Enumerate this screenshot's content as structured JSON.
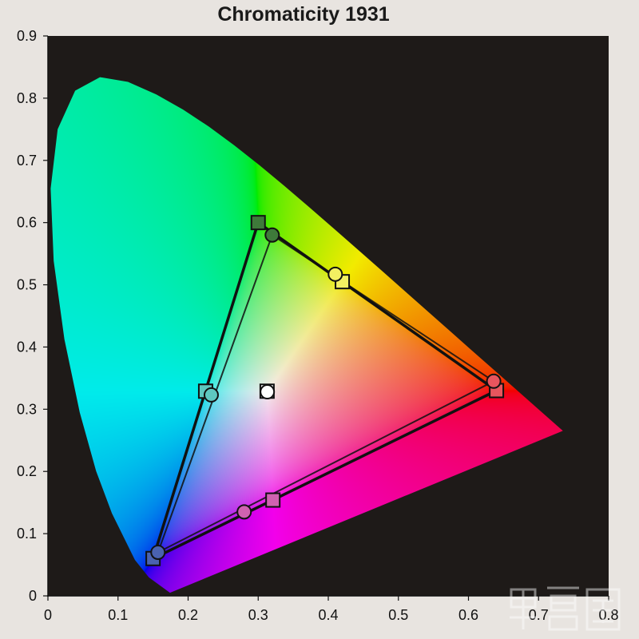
{
  "chart_data": {
    "type": "scatter",
    "title": "Chromaticity 1931",
    "xlabel": "",
    "ylabel": "",
    "xlim": [
      0,
      0.8
    ],
    "ylim": [
      0,
      0.9
    ],
    "x_ticks": [
      "0",
      "0.1",
      "0.2",
      "0.3",
      "0.4",
      "0.5",
      "0.6",
      "0.7",
      "0.8"
    ],
    "y_ticks": [
      "0",
      "0.1",
      "0.2",
      "0.3",
      "0.4",
      "0.5",
      "0.6",
      "0.7",
      "0.8",
      "0.9"
    ],
    "grid": false,
    "background_color": "#1e1a18",
    "triangle_color": "#111111",
    "spectral_locus": [
      [
        0.1741,
        0.005
      ],
      [
        0.144,
        0.0297
      ],
      [
        0.1241,
        0.0578
      ],
      [
        0.0913,
        0.1327
      ],
      [
        0.0687,
        0.2007
      ],
      [
        0.0454,
        0.295
      ],
      [
        0.0235,
        0.4127
      ],
      [
        0.0082,
        0.5384
      ],
      [
        0.0039,
        0.6548
      ],
      [
        0.0139,
        0.7502
      ],
      [
        0.0389,
        0.812
      ],
      [
        0.0743,
        0.8338
      ],
      [
        0.1142,
        0.8262
      ],
      [
        0.1547,
        0.8059
      ],
      [
        0.1929,
        0.7816
      ],
      [
        0.2296,
        0.7543
      ],
      [
        0.2658,
        0.7243
      ],
      [
        0.3016,
        0.6923
      ],
      [
        0.3373,
        0.6589
      ],
      [
        0.3731,
        0.6245
      ],
      [
        0.4087,
        0.5896
      ],
      [
        0.4441,
        0.5547
      ],
      [
        0.4788,
        0.5202
      ],
      [
        0.5125,
        0.4866
      ],
      [
        0.5448,
        0.4544
      ],
      [
        0.5752,
        0.4242
      ],
      [
        0.6029,
        0.3965
      ],
      [
        0.627,
        0.3725
      ],
      [
        0.6482,
        0.3514
      ],
      [
        0.6658,
        0.334
      ],
      [
        0.6915,
        0.3083
      ],
      [
        0.7347,
        0.2653
      ]
    ],
    "reference_points": [
      {
        "x": 0.3,
        "y": 0.6,
        "color": "#3e7a3a"
      },
      {
        "x": 0.42,
        "y": 0.505,
        "color": "#f2f062"
      },
      {
        "x": 0.64,
        "y": 0.33,
        "color": "#e8555e"
      },
      {
        "x": 0.321,
        "y": 0.154,
        "color": "#d062b0"
      },
      {
        "x": 0.15,
        "y": 0.06,
        "color": "#4a62b0"
      },
      {
        "x": 0.225,
        "y": 0.329,
        "color": "#5ec8c0"
      },
      {
        "x": 0.3127,
        "y": 0.329,
        "color": "#ffffff"
      }
    ],
    "measured_points": [
      {
        "x": 0.32,
        "y": 0.58,
        "color": "#3e7a3a"
      },
      {
        "x": 0.41,
        "y": 0.517,
        "color": "#f2f062"
      },
      {
        "x": 0.636,
        "y": 0.345,
        "color": "#e8555e"
      },
      {
        "x": 0.28,
        "y": 0.135,
        "color": "#d062b0"
      },
      {
        "x": 0.157,
        "y": 0.07,
        "color": "#4a62b0"
      },
      {
        "x": 0.233,
        "y": 0.323,
        "color": "#5ec8c0"
      },
      {
        "x": 0.313,
        "y": 0.328,
        "color": "#ffffff"
      }
    ],
    "reference_triangle": [
      [
        0.3,
        0.6
      ],
      [
        0.64,
        0.33
      ],
      [
        0.15,
        0.06
      ]
    ],
    "measured_triangle": [
      [
        0.32,
        0.58
      ],
      [
        0.636,
        0.345
      ],
      [
        0.157,
        0.07
      ]
    ]
  }
}
